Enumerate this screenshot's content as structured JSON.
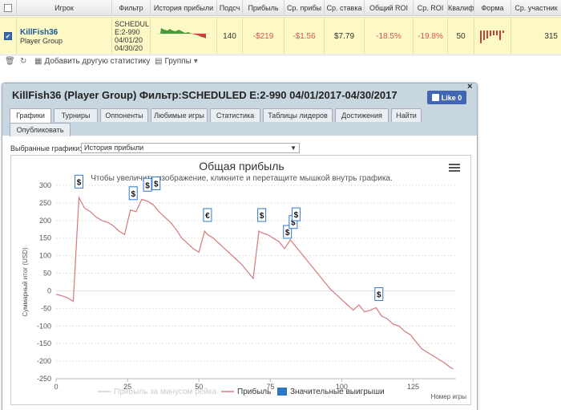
{
  "table": {
    "headers": [
      "Игрок",
      "Фильтр",
      "История прибыли",
      "Подсч",
      "Прибыль",
      "Ср. прибы",
      "Ср. ставка",
      "Общий ROI",
      "Ср. ROI",
      "Квалиф",
      "Форма",
      "Ср. участник"
    ],
    "row": {
      "player": "KillFish36",
      "group": "Player Group",
      "filter": "SCHEDUL\nE:2-990\n04/01/20\n04/30/20",
      "count": "140",
      "profit": "-$219",
      "avg_profit": "-$1.56",
      "avg_stake": "$7.79",
      "total_roi": "-18.5%",
      "avg_roi": "-19.8%",
      "qualif": "50",
      "avg_entrants": "315"
    }
  },
  "toolbar": {
    "add_stat": "Добавить другую статистику",
    "groups": "Группы"
  },
  "dialog": {
    "title": "KillFish36 (Player Group) Фильтр:SCHEDULED E:2-990 04/01/2017-04/30/2017",
    "like": "Like 0",
    "close": "×",
    "tabs": [
      "Графики",
      "Турниры",
      "Оппоненты",
      "Любимые игры",
      "Статистика",
      "Таблицы лидеров",
      "Достижения",
      "Найти",
      "Опубликовать"
    ],
    "select_label": "Выбранные графики:",
    "select_value": "История прибыли"
  },
  "chart_data": {
    "type": "line",
    "title": "Общая прибыль",
    "subtitle": "Чтобы увеличить изображение, кликните и перетащите мышкой внутрь графика.",
    "xlabel": "Номер игры",
    "ylabel": "Суммарный итог (USD)",
    "xlim": [
      0,
      140
    ],
    "ylim": [
      -250,
      300
    ],
    "xticks": [
      0,
      25,
      50,
      75,
      100,
      125
    ],
    "yticks": [
      300,
      250,
      200,
      150,
      100,
      50,
      0,
      -50,
      -100,
      -150,
      -200,
      -250
    ],
    "legend": [
      "Прибыль за минусом рейка",
      "Прибыль",
      "Значительные выигрыши"
    ],
    "series": [
      {
        "name": "Прибыль",
        "color": "#d47a7a",
        "x": [
          0,
          2,
          4,
          6,
          8,
          10,
          12,
          14,
          16,
          18,
          20,
          22,
          24,
          26,
          28,
          30,
          32,
          34,
          36,
          38,
          40,
          42,
          44,
          46,
          48,
          50,
          52,
          53,
          55,
          57,
          59,
          61,
          63,
          65,
          67,
          69,
          71,
          72,
          74,
          76,
          78,
          80,
          82,
          84,
          86,
          88,
          90,
          92,
          94,
          96,
          98,
          100,
          102,
          104,
          106,
          108,
          110,
          112,
          114,
          116,
          118,
          120,
          122,
          124,
          126,
          128,
          130,
          132,
          134,
          136,
          138,
          139
        ],
        "y": [
          -10,
          -14,
          -20,
          -30,
          265,
          235,
          225,
          210,
          200,
          195,
          185,
          170,
          160,
          230,
          225,
          260,
          255,
          245,
          225,
          210,
          195,
          175,
          150,
          135,
          120,
          110,
          170,
          160,
          150,
          135,
          120,
          105,
          90,
          75,
          55,
          35,
          170,
          165,
          160,
          150,
          140,
          120,
          145,
          125,
          105,
          85,
          65,
          45,
          25,
          5,
          -10,
          -25,
          -40,
          -55,
          -40,
          -60,
          -55,
          -48,
          -72,
          -80,
          -95,
          -100,
          -115,
          -125,
          -145,
          -165,
          -175,
          -185,
          -195,
          -205,
          -218,
          -222
        ]
      }
    ],
    "markers": [
      {
        "x": 8,
        "y": 265,
        "label": "$"
      },
      {
        "x": 27,
        "y": 232,
        "label": "$"
      },
      {
        "x": 32,
        "y": 256,
        "label": "$"
      },
      {
        "x": 35,
        "y": 260,
        "label": "$"
      },
      {
        "x": 53,
        "y": 170,
        "label": "€"
      },
      {
        "x": 72,
        "y": 170,
        "label": "$"
      },
      {
        "x": 81,
        "y": 122,
        "label": "$"
      },
      {
        "x": 83,
        "y": 150,
        "label": "$"
      },
      {
        "x": 84,
        "y": 172,
        "label": "$"
      },
      {
        "x": 113,
        "y": -55,
        "label": "$"
      }
    ]
  },
  "colors": {
    "row_highlight": "#fdf9c6",
    "profit_line": "#d47a7a",
    "negative": "#d9534f",
    "accent": "#2f78c8"
  }
}
